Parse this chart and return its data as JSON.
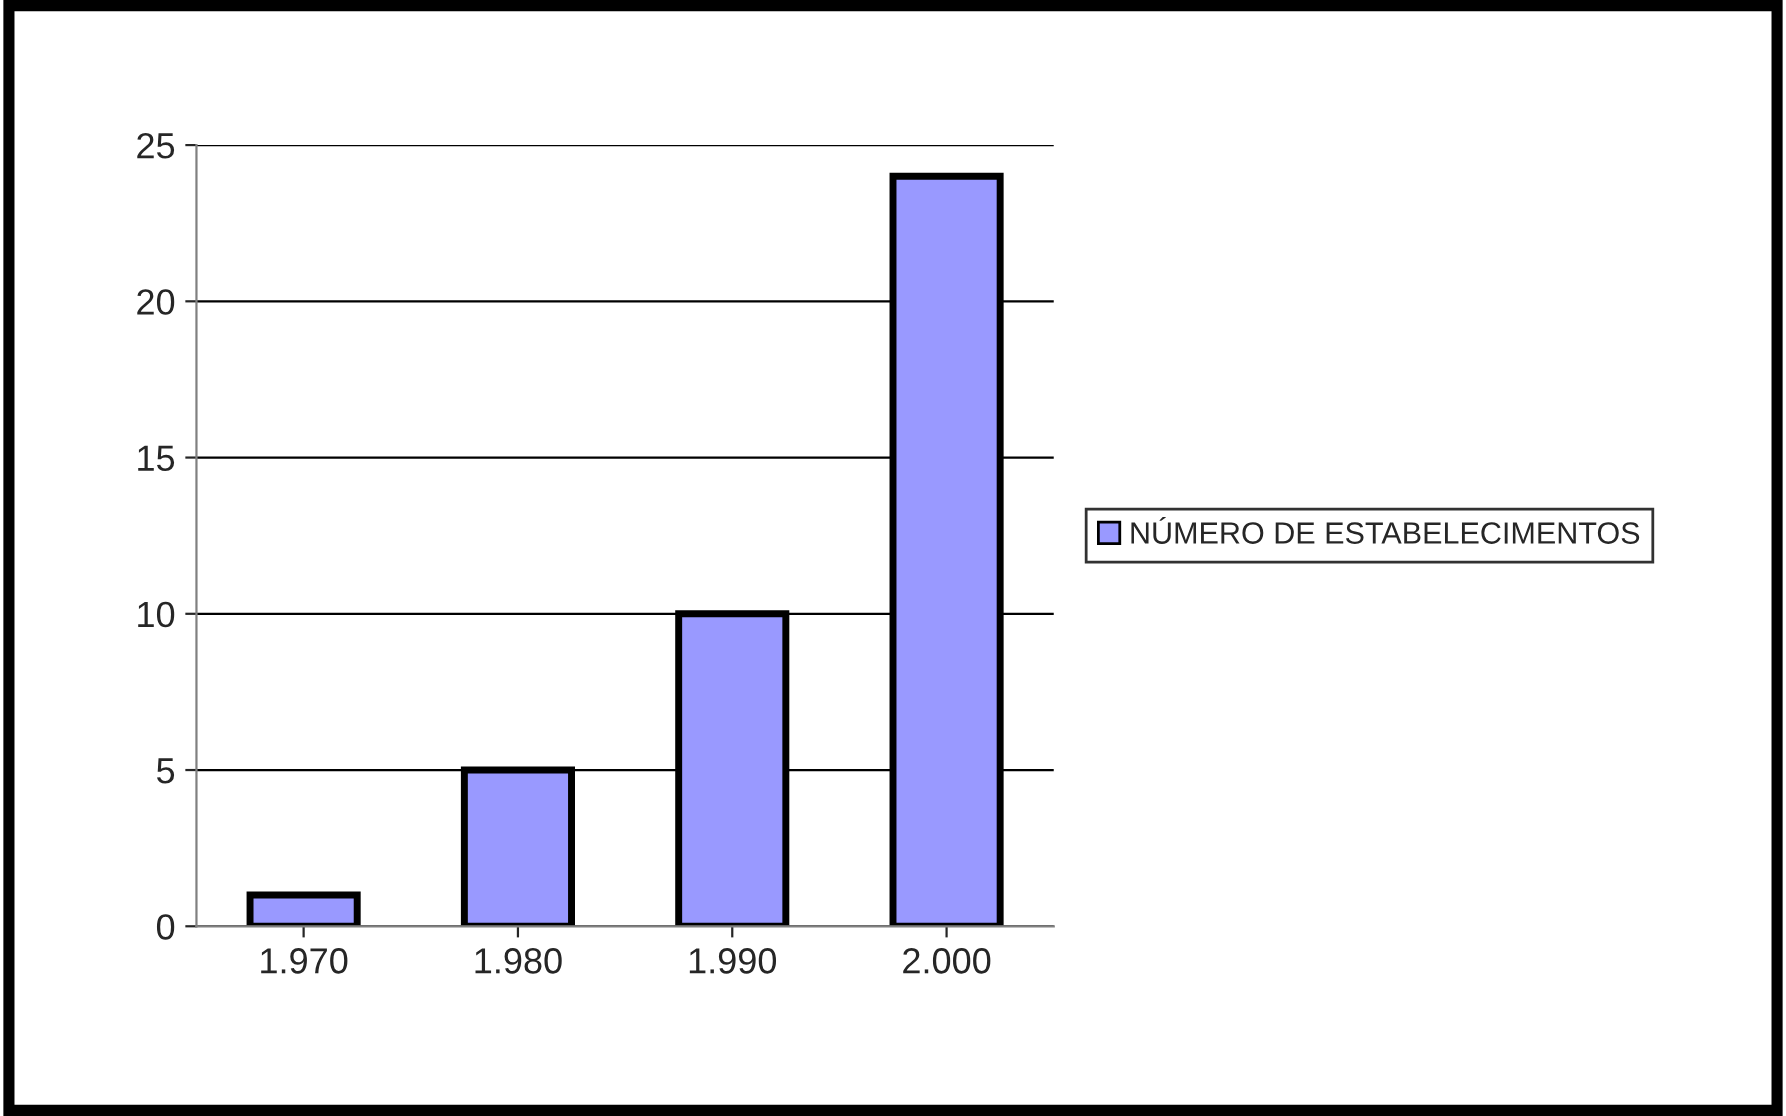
{
  "chart_data": {
    "type": "bar",
    "categories": [
      "1.970",
      "1.980",
      "1.990",
      "2.000"
    ],
    "series": [
      {
        "name": "NÚMERO DE ESTABELECIMENTOS",
        "color": "#9999ff",
        "values": [
          1,
          5,
          10,
          24
        ]
      }
    ],
    "ylim": [
      0,
      25
    ],
    "yticks": [
      0,
      5,
      10,
      15,
      20,
      25
    ],
    "grid": "y",
    "legend": "right"
  }
}
